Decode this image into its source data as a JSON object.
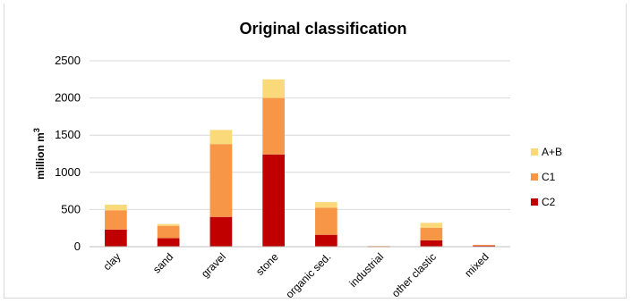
{
  "chart_data": {
    "type": "bar",
    "stacked": true,
    "title": "Original classification",
    "xlabel": "",
    "ylabel": "million m",
    "ylabel_superscript": "3",
    "ylim": [
      0,
      2500
    ],
    "yticks": [
      0,
      500,
      1000,
      1500,
      2000,
      2500
    ],
    "grid": true,
    "legend_position": "right",
    "categories": [
      "clay",
      "sand",
      "gravel",
      "stone",
      "organic sed.",
      "industrial",
      "other clastic",
      "mixed"
    ],
    "series": [
      {
        "name": "C2",
        "color": "#c00000",
        "values": [
          230,
          115,
          400,
          1240,
          160,
          5,
          85,
          20
        ]
      },
      {
        "name": "C1",
        "color": "#f79646",
        "values": [
          260,
          165,
          980,
          760,
          365,
          5,
          170,
          5
        ]
      },
      {
        "name": "A+B",
        "color": "#fad97a",
        "values": [
          75,
          25,
          190,
          250,
          75,
          0,
          65,
          0
        ]
      }
    ],
    "legend_order": [
      "A+B",
      "C1",
      "C2"
    ]
  }
}
